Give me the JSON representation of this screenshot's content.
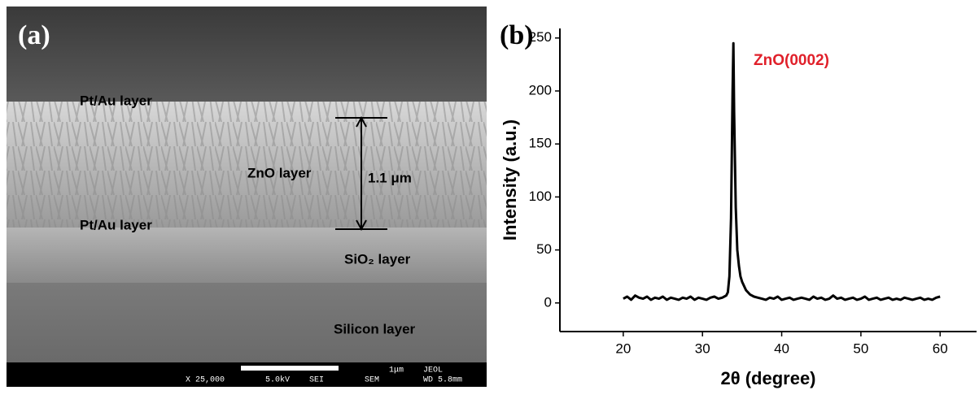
{
  "panel_a": {
    "label": "(a)",
    "layers": [
      "Pt/Au layer",
      "ZnO layer",
      "Pt/Au layer",
      "SiO₂ layer",
      "Silicon layer"
    ],
    "thickness": "1.1 μm",
    "footer": {
      "scale": "1μm",
      "maker": "JEOL",
      "magnification": "X 25,000",
      "voltage": "5.0kV",
      "mode": "SEI",
      "instrument": "SEM",
      "wd": "WD 5.8mm"
    }
  },
  "chart_data": {
    "type": "line",
    "panel_label": "(b)",
    "annotation": "ZnO(0002)",
    "x_label": "2θ (degree)",
    "y_label": "Intensity (a.u.)",
    "color": "#000000",
    "annotation_color": "#e0202a",
    "xlim": [
      12,
      64.6
    ],
    "ylim": [
      -27,
      259
    ],
    "xticks": [
      20,
      30,
      40,
      50,
      60
    ],
    "yticks": [
      0,
      50,
      100,
      150,
      200,
      250
    ],
    "x": [
      20,
      20.5,
      21,
      21.5,
      22,
      22.5,
      23,
      23.5,
      24,
      24.5,
      25,
      25.5,
      26,
      26.5,
      27,
      27.5,
      28,
      28.5,
      29,
      29.5,
      30,
      30.5,
      31,
      31.5,
      32,
      32.5,
      33,
      33.2,
      33.4,
      33.6,
      33.8,
      33.9,
      34,
      34.2,
      34.4,
      34.6,
      34.8,
      35,
      35.5,
      36,
      36.5,
      37,
      37.5,
      38,
      38.5,
      39,
      39.5,
      40,
      40.5,
      41,
      41.5,
      42,
      42.5,
      43,
      43.5,
      44,
      44.5,
      45,
      45.5,
      46,
      46.5,
      47,
      47.5,
      48,
      48.5,
      49,
      49.5,
      50,
      50.5,
      51,
      51.5,
      52,
      52.5,
      53,
      53.5,
      54,
      54.5,
      55,
      55.5,
      56,
      56.5,
      57,
      57.5,
      58,
      58.5,
      59,
      59.5,
      60
    ],
    "values": [
      4,
      6,
      3,
      7,
      5,
      4,
      6,
      3,
      5,
      4,
      6,
      3,
      5,
      4,
      3,
      5,
      4,
      6,
      3,
      5,
      4,
      3,
      5,
      6,
      4,
      5,
      7,
      10,
      25,
      80,
      200,
      245,
      180,
      90,
      50,
      35,
      25,
      20,
      12,
      8,
      6,
      5,
      4,
      3,
      5,
      4,
      6,
      3,
      4,
      5,
      3,
      4,
      5,
      4,
      3,
      6,
      4,
      5,
      3,
      4,
      7,
      4,
      5,
      3,
      4,
      5,
      3,
      4,
      6,
      3,
      4,
      5,
      3,
      4,
      5,
      3,
      4,
      3,
      5,
      4,
      3,
      4,
      5,
      3,
      4,
      3,
      5,
      6
    ]
  }
}
